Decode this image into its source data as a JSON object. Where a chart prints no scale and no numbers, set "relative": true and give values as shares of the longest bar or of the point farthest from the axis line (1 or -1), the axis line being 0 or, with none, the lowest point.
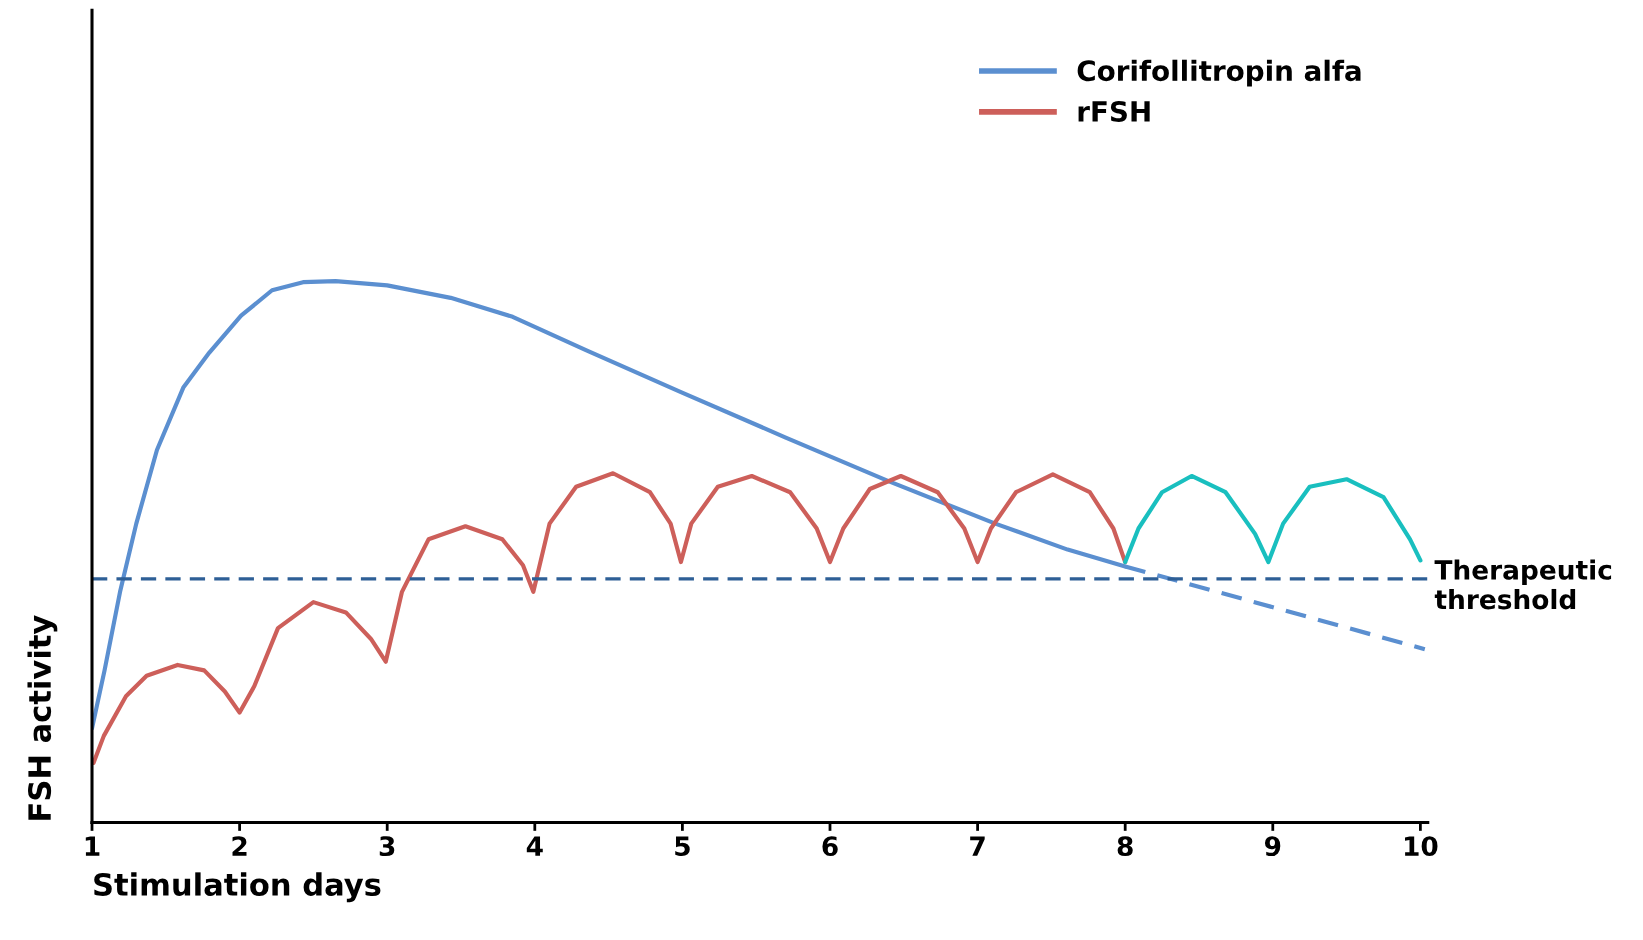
{
  "chart_data": {
    "type": "line",
    "relative": true,
    "xlabel": "Stimulation days",
    "ylabel": "FSH activity",
    "xlim": [
      1,
      10.05
    ],
    "xticks": [
      1,
      2,
      3,
      4,
      5,
      6,
      7,
      8,
      9,
      10
    ],
    "legend": "top right",
    "grid": false,
    "marker": "none",
    "series": [
      {
        "name": "Corifollitropin alfa",
        "color": "#5b8fd0",
        "line_style": "solid",
        "x": [
          1,
          1.085,
          1.19,
          1.3,
          1.44,
          1.62,
          1.795,
          2.01,
          2.22,
          2.43,
          2.65,
          3.0,
          3.43,
          3.85,
          4.35,
          4.99,
          5.7,
          6.4,
          7.12,
          7.61,
          8.0
        ],
        "values": [
          0.174,
          0.281,
          0.426,
          0.552,
          0.688,
          0.804,
          0.868,
          0.936,
          0.983,
          0.998,
          1.0,
          0.992,
          0.969,
          0.934,
          0.872,
          0.795,
          0.711,
          0.63,
          0.552,
          0.504,
          0.473
        ]
      },
      {
        "name": "rFSH",
        "color": "#cd5f5a",
        "line_style": "solid",
        "x": [
          1.01,
          1.08,
          1.23,
          1.37,
          1.58,
          1.76,
          1.9,
          2.0,
          2.1,
          2.26,
          2.5,
          2.72,
          2.89,
          2.99,
          3.1,
          3.28,
          3.53,
          3.78,
          3.92,
          3.99,
          4.1,
          4.28,
          4.53,
          4.78,
          4.92,
          4.99,
          5.06,
          5.24,
          5.47,
          5.73,
          5.91,
          6.0,
          6.09,
          6.27,
          6.48,
          6.73,
          6.91,
          7.0,
          7.09,
          7.26,
          7.51,
          7.76,
          7.92,
          8.0
        ],
        "values": [
          0.11,
          0.16,
          0.233,
          0.271,
          0.291,
          0.281,
          0.242,
          0.203,
          0.252,
          0.359,
          0.407,
          0.388,
          0.339,
          0.297,
          0.426,
          0.523,
          0.547,
          0.523,
          0.475,
          0.426,
          0.552,
          0.62,
          0.645,
          0.61,
          0.552,
          0.481,
          0.552,
          0.62,
          0.64,
          0.61,
          0.543,
          0.481,
          0.543,
          0.616,
          0.64,
          0.61,
          0.543,
          0.481,
          0.543,
          0.61,
          0.643,
          0.61,
          0.543,
          0.481
        ]
      },
      {
        "color": "#19bfbf",
        "line_style": "solid",
        "x": [
          8.0,
          8.09,
          8.25,
          8.45,
          8.68,
          8.88,
          8.97,
          9.07,
          9.25,
          9.5,
          9.75,
          9.93,
          10.0
        ],
        "values": [
          0.481,
          0.543,
          0.61,
          0.64,
          0.61,
          0.533,
          0.481,
          0.552,
          0.62,
          0.634,
          0.601,
          0.523,
          0.484
        ]
      },
      {
        "color": "#5b8fd0",
        "line_style": "dashed",
        "x": [
          8.0,
          10.03
        ],
        "values": [
          0.473,
          0.32
        ]
      }
    ],
    "ref_lines": [
      {
        "axis": "y",
        "value": 0.45,
        "label": "Therapeutic\nthreshold",
        "color": "#2e5f96",
        "line_style": "dashed"
      }
    ]
  }
}
